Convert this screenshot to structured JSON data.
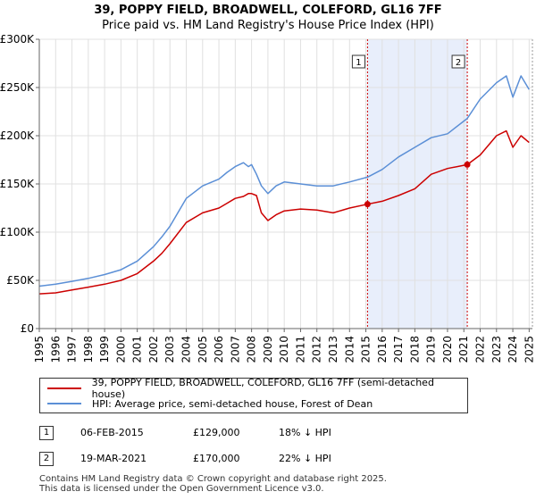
{
  "title_line1": "39, POPPY FIELD, BROADWELL, COLEFORD, GL16 7FF",
  "title_line2": "Price paid vs. HM Land Registry's House Price Index (HPI)",
  "legend": {
    "property_label": "39, POPPY FIELD, BROADWELL, COLEFORD, GL16 7FF (semi-detached house)",
    "hpi_label": "HPI: Average price, semi-detached house, Forest of Dean"
  },
  "transactions": [
    {
      "num": "1",
      "date": "06-FEB-2015",
      "price": "£129,000",
      "hpi_diff": "18% ↓ HPI"
    },
    {
      "num": "2",
      "date": "19-MAR-2021",
      "price": "£170,000",
      "hpi_diff": "22% ↓ HPI"
    }
  ],
  "footer": {
    "line1": "Contains HM Land Registry data © Crown copyright and database right 2025.",
    "line2": "This data is licensed under the Open Government Licence v3.0."
  },
  "colors": {
    "property": "#cc0000",
    "hpi": "#5b8fd6",
    "shade": "#e8eefb",
    "marker_line": "#cc0000",
    "grid": "#e0e0e0"
  },
  "chart_data": {
    "type": "line",
    "title": "Price paid vs. HM Land Registry's House Price Index (HPI)",
    "xlabel": "",
    "ylabel": "",
    "xlim": [
      1995,
      2025.2
    ],
    "ylim": [
      0,
      300000
    ],
    "y_ticks": [
      0,
      50000,
      100000,
      150000,
      200000,
      250000,
      300000
    ],
    "y_tick_labels": [
      "£0",
      "£50K",
      "£100K",
      "£150K",
      "£200K",
      "£250K",
      "£300K"
    ],
    "x_ticks": [
      1995,
      1996,
      1997,
      1998,
      1999,
      2000,
      2001,
      2002,
      2003,
      2004,
      2005,
      2006,
      2007,
      2008,
      2009,
      2010,
      2011,
      2012,
      2013,
      2014,
      2015,
      2016,
      2017,
      2018,
      2019,
      2020,
      2021,
      2022,
      2023,
      2024,
      2025
    ],
    "grid": true,
    "shaded_region": [
      2015.1,
      2021.21
    ],
    "markers": [
      {
        "label": "1",
        "x": 2015.1,
        "y": 129000
      },
      {
        "label": "2",
        "x": 2021.21,
        "y": 170000
      }
    ],
    "series": [
      {
        "name": "39, POPPY FIELD, BROADWELL, COLEFORD, GL16 7FF (semi-detached house)",
        "color": "#cc0000",
        "x": [
          1995,
          1996,
          1997,
          1998,
          1999,
          2000,
          2001,
          2002,
          2002.5,
          2003,
          2004,
          2005,
          2006,
          2006.5,
          2007,
          2007.5,
          2007.8,
          2008,
          2008.3,
          2008.6,
          2009,
          2009.5,
          2010,
          2011,
          2012,
          2013,
          2014,
          2015.1,
          2016,
          2017,
          2018,
          2019,
          2020,
          2021.21,
          2022,
          2023,
          2023.6,
          2024,
          2024.5,
          2025
        ],
        "values": [
          36000,
          37000,
          40000,
          43000,
          46000,
          50000,
          57000,
          70000,
          78000,
          88000,
          110000,
          120000,
          125000,
          130000,
          135000,
          137000,
          140000,
          140000,
          138000,
          120000,
          112000,
          118000,
          122000,
          124000,
          123000,
          120000,
          125000,
          129000,
          132000,
          138000,
          145000,
          160000,
          166000,
          170000,
          180000,
          200000,
          205000,
          188000,
          200000,
          193000
        ]
      },
      {
        "name": "HPI: Average price, semi-detached house, Forest of Dean",
        "color": "#5b8fd6",
        "x": [
          1995,
          1996,
          1997,
          1998,
          1999,
          2000,
          2001,
          2002,
          2002.5,
          2003,
          2004,
          2005,
          2006,
          2006.5,
          2007,
          2007.5,
          2007.8,
          2008,
          2008.3,
          2008.6,
          2009,
          2009.5,
          2010,
          2011,
          2012,
          2013,
          2014,
          2015.1,
          2016,
          2017,
          2018,
          2019,
          2020,
          2021.21,
          2022,
          2023,
          2023.6,
          2024,
          2024.5,
          2025
        ],
        "values": [
          44000,
          46000,
          49000,
          52000,
          56000,
          61000,
          70000,
          85000,
          95000,
          106000,
          135000,
          148000,
          155000,
          162000,
          168000,
          172000,
          168000,
          170000,
          160000,
          148000,
          140000,
          148000,
          152000,
          150000,
          148000,
          148000,
          152000,
          157000,
          165000,
          178000,
          188000,
          198000,
          202000,
          218000,
          238000,
          255000,
          262000,
          240000,
          262000,
          248000
        ]
      }
    ]
  }
}
